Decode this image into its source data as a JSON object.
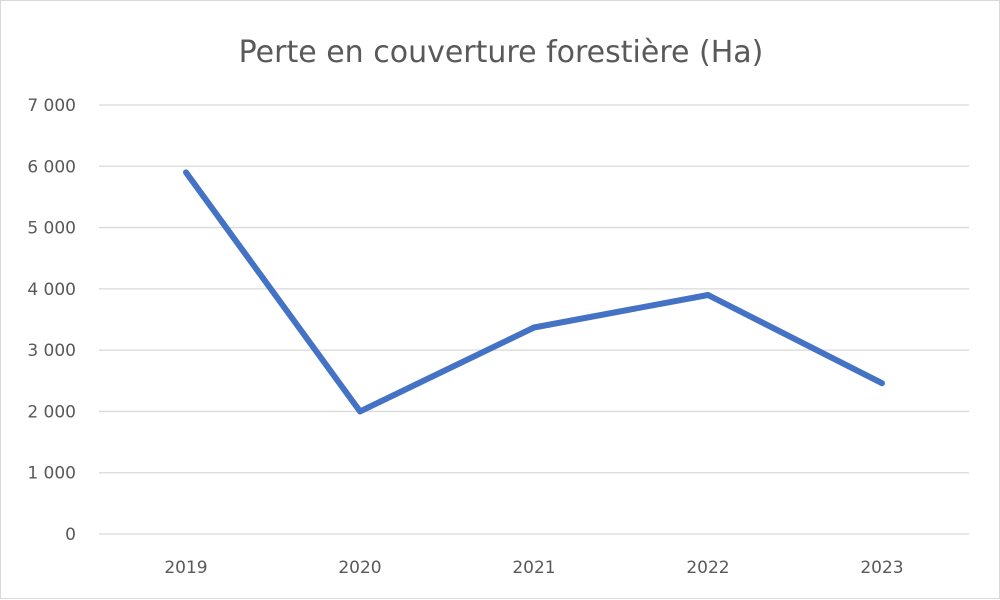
{
  "chart_data": {
    "type": "line",
    "title": "Perte en couverture forestière (Ha)",
    "xlabel": "",
    "ylabel": "",
    "categories": [
      "2019",
      "2020",
      "2021",
      "2022",
      "2023"
    ],
    "series": [
      {
        "values": [
          5900,
          2000,
          3370,
          3900,
          2460
        ],
        "color": "#4472c4"
      }
    ],
    "ylim": [
      0,
      7000
    ],
    "yticks": [
      {
        "value": 0,
        "label": "0"
      },
      {
        "value": 1000,
        "label": "1 000"
      },
      {
        "value": 2000,
        "label": "2 000"
      },
      {
        "value": 3000,
        "label": "3 000"
      },
      {
        "value": 4000,
        "label": "4 000"
      },
      {
        "value": 5000,
        "label": "5 000"
      },
      {
        "value": 6000,
        "label": "6 000"
      },
      {
        "value": 7000,
        "label": "7 000"
      }
    ],
    "grid": true,
    "legend": "none"
  }
}
